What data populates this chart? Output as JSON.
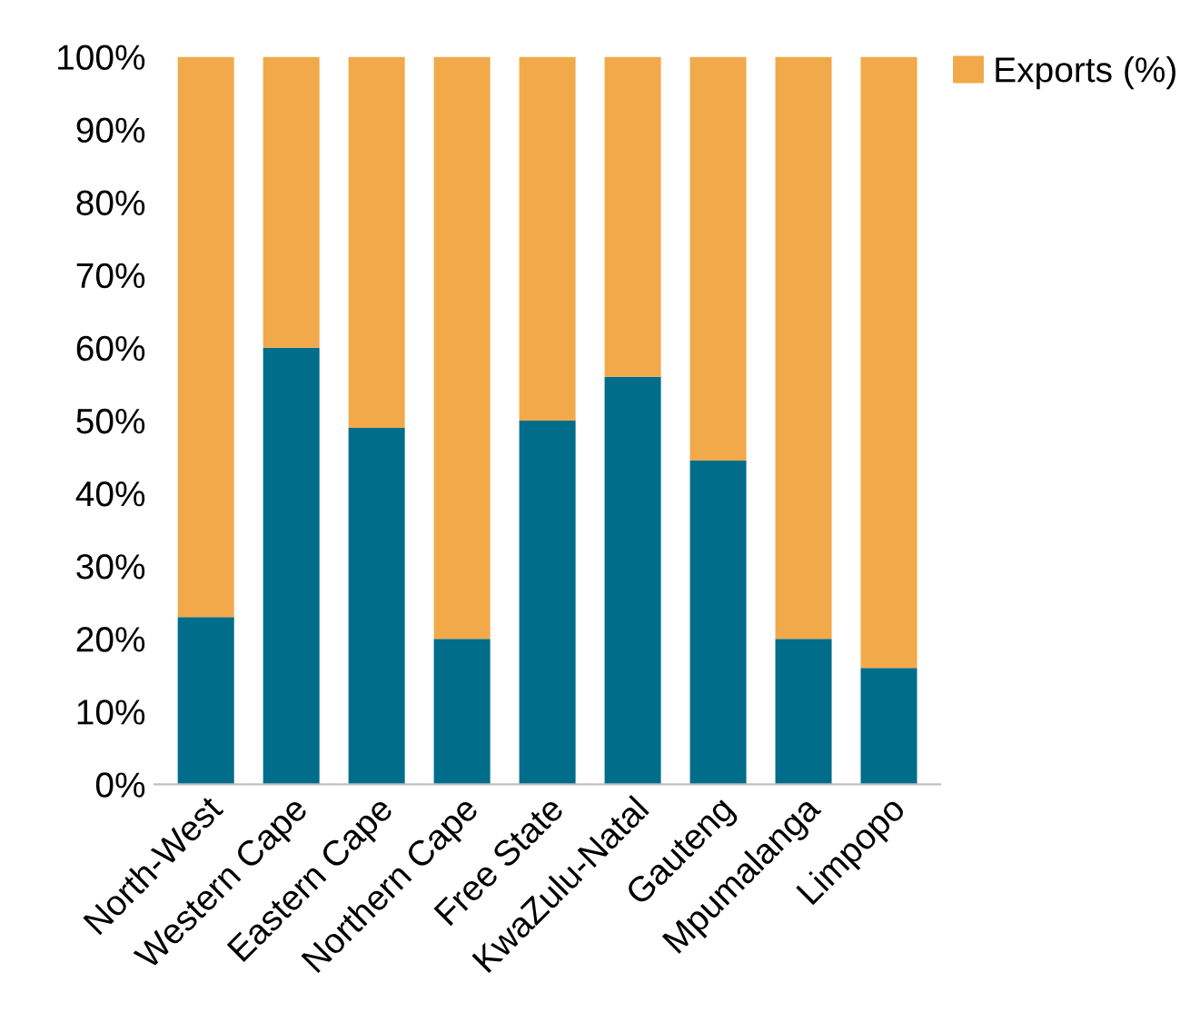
{
  "chart_data": {
    "type": "bar",
    "stacked": true,
    "categories": [
      "North-West",
      "Western Cape",
      "Eastern Cape",
      "Northern Cape",
      "Free State",
      "KwaZulu-Natal",
      "Gauteng",
      "Mpumalanga",
      "Limpopo"
    ],
    "series": [
      {
        "color": "#006d8a",
        "values": [
          23,
          60,
          49,
          20,
          50,
          56,
          44.5,
          20,
          16
        ]
      },
      {
        "name": "Exports (%)",
        "color": "#f2a94a",
        "values": [
          77,
          40,
          51,
          80,
          50,
          44,
          55.5,
          80,
          84
        ]
      }
    ],
    "ylim": [
      0,
      100
    ],
    "yticks": [
      {
        "value": 0,
        "label": "0%"
      },
      {
        "value": 10,
        "label": "10%"
      },
      {
        "value": 20,
        "label": "20%"
      },
      {
        "value": 30,
        "label": "30%"
      },
      {
        "value": 40,
        "label": "40%"
      },
      {
        "value": 50,
        "label": "50%"
      },
      {
        "value": 60,
        "label": "60%"
      },
      {
        "value": 70,
        "label": "70%"
      },
      {
        "value": 80,
        "label": "80%"
      },
      {
        "value": 90,
        "label": "90%"
      },
      {
        "value": 100,
        "label": "100%"
      }
    ],
    "grid": false,
    "legend": "top right"
  }
}
